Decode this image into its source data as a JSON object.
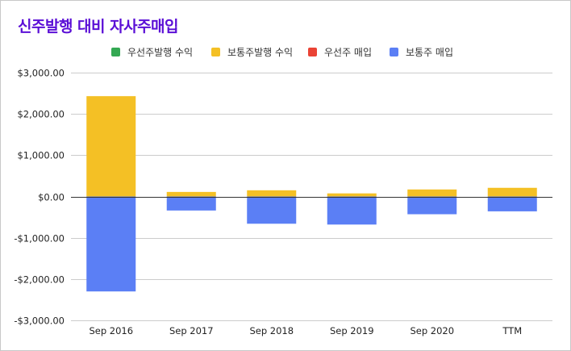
{
  "chart_data": {
    "type": "bar",
    "stacked": true,
    "title": "신주발행 대비 자사주매입",
    "title_color": "#5b0fd6",
    "categories": [
      "Sep 2016",
      "Sep 2017",
      "Sep 2018",
      "Sep 2019",
      "Sep 2020",
      "TTM"
    ],
    "series": [
      {
        "name": "우선주발행 수익",
        "color": "#34a853",
        "values": [
          0,
          0,
          0,
          0,
          0,
          0
        ]
      },
      {
        "name": "보통주발행 수익",
        "color": "#f4c025",
        "values": [
          2430,
          110,
          150,
          75,
          170,
          210
        ]
      },
      {
        "name": "우선주 매입",
        "color": "#ea4335",
        "values": [
          0,
          0,
          0,
          0,
          0,
          0
        ]
      },
      {
        "name": "보통주 매입",
        "color": "#5b7ff5",
        "values": [
          -2300,
          -340,
          -660,
          -680,
          -430,
          -360
        ]
      }
    ],
    "ylim": [
      -3000,
      3000
    ],
    "yticks": [
      {
        "value": 3000,
        "label": "$3,000.00"
      },
      {
        "value": 2000,
        "label": "$2,000.00"
      },
      {
        "value": 1000,
        "label": "$1,000.00"
      },
      {
        "value": 0,
        "label": "$0.00"
      },
      {
        "value": -1000,
        "label": "-$1,000.00"
      },
      {
        "value": -2000,
        "label": "-$2,000.00"
      },
      {
        "value": -3000,
        "label": "-$3,000.00"
      }
    ],
    "grid": true,
    "legend_position": "top",
    "xlabel": "",
    "ylabel": ""
  }
}
